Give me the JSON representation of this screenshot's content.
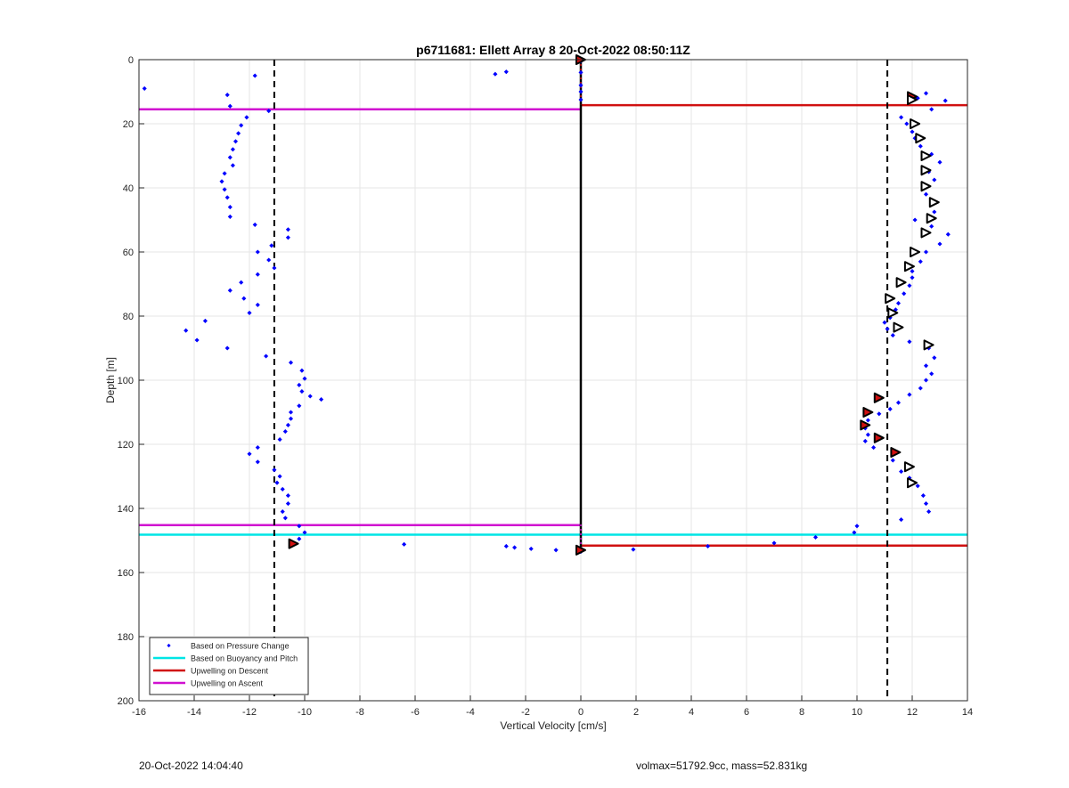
{
  "chart_data": {
    "type": "scatter",
    "title": "p6711681: Ellett Array 8 20-Oct-2022 08:50:11Z",
    "xlabel": "Vertical Velocity [cm/s]",
    "ylabel": "Depth [m]",
    "xlim": [
      -16,
      14
    ],
    "ylim": [
      0,
      200
    ],
    "y_reversed": true,
    "xticks": [
      -16,
      -14,
      -12,
      -10,
      -8,
      -6,
      -4,
      -2,
      0,
      2,
      4,
      6,
      8,
      10,
      12,
      14
    ],
    "yticks": [
      0,
      20,
      40,
      60,
      80,
      100,
      120,
      140,
      160,
      180,
      200
    ],
    "grid": true,
    "legend_location": "bottom-left",
    "legend": [
      {
        "label": "Based on Pressure Change",
        "color": "#0000ff",
        "marker": "dot"
      },
      {
        "label": "Based on Buoyancy and Pitch",
        "color": "#00e5e5",
        "marker": "line"
      },
      {
        "label": "Upwelling on Descent",
        "color": "#d01010",
        "marker": "line"
      },
      {
        "label": "Upwelling on Ascent",
        "color": "#d010d0",
        "marker": "line"
      }
    ],
    "dashed_lines_x": [
      -11.1,
      11.1
    ],
    "zero_line_x": 0,
    "ascent_points": [
      [
        -15.8,
        9
      ],
      [
        -11.8,
        5
      ],
      [
        -12.8,
        11
      ],
      [
        -12.7,
        14.5
      ],
      [
        -11.3,
        16
      ],
      [
        -12.1,
        18
      ],
      [
        -12.3,
        20.5
      ],
      [
        -12.4,
        23
      ],
      [
        -12.5,
        25.5
      ],
      [
        -12.6,
        28
      ],
      [
        -12.7,
        30.5
      ],
      [
        -12.6,
        33
      ],
      [
        -12.9,
        35.5
      ],
      [
        -13.0,
        38
      ],
      [
        -12.9,
        40.5
      ],
      [
        -12.8,
        43
      ],
      [
        -12.7,
        46
      ],
      [
        -12.7,
        49
      ],
      [
        -11.8,
        51.5
      ],
      [
        -10.6,
        53
      ],
      [
        -10.6,
        55.5
      ],
      [
        -11.2,
        58
      ],
      [
        -11.7,
        60
      ],
      [
        -11.3,
        62.5
      ],
      [
        -11.1,
        65
      ],
      [
        -11.7,
        67
      ],
      [
        -12.3,
        69.5
      ],
      [
        -12.7,
        72
      ],
      [
        -12.2,
        74.5
      ],
      [
        -11.7,
        76.5
      ],
      [
        -12.0,
        79
      ],
      [
        -13.6,
        81.5
      ],
      [
        -14.3,
        84.5
      ],
      [
        -13.9,
        87.5
      ],
      [
        -12.8,
        90
      ],
      [
        -11.4,
        92.5
      ],
      [
        -10.5,
        94.5
      ],
      [
        -10.1,
        97
      ],
      [
        -10.0,
        99.5
      ],
      [
        -10.2,
        101.5
      ],
      [
        -10.1,
        103.5
      ],
      [
        -9.8,
        105
      ],
      [
        -9.4,
        106
      ],
      [
        -10.2,
        108
      ],
      [
        -10.5,
        110
      ],
      [
        -10.5,
        112
      ],
      [
        -10.6,
        114
      ],
      [
        -10.7,
        116
      ],
      [
        -10.9,
        118.5
      ],
      [
        -11.7,
        121
      ],
      [
        -12.0,
        123
      ],
      [
        -11.7,
        125.5
      ],
      [
        -11.1,
        128
      ],
      [
        -10.9,
        130
      ],
      [
        -11.0,
        132
      ],
      [
        -10.8,
        134
      ],
      [
        -10.6,
        136
      ],
      [
        -10.6,
        138.5
      ],
      [
        -10.8,
        141
      ],
      [
        -10.7,
        143
      ],
      [
        -10.2,
        145.5
      ],
      [
        -10.0,
        147.5
      ],
      [
        -10.2,
        149.5
      ],
      [
        -6.4,
        151.2
      ],
      [
        -2.7,
        151.8
      ],
      [
        -2.4,
        152.2
      ],
      [
        -1.8,
        152.6
      ],
      [
        -0.9,
        153
      ],
      [
        -3.1,
        4.5
      ],
      [
        -2.7,
        3.8
      ]
    ],
    "descent_points": [
      [
        0,
        0.5
      ],
      [
        0,
        4
      ],
      [
        0,
        8
      ],
      [
        0,
        10
      ],
      [
        0,
        12.5
      ],
      [
        12.5,
        10.5
      ],
      [
        12.2,
        12
      ],
      [
        13.2,
        12.8
      ],
      [
        12.7,
        15.5
      ],
      [
        11.6,
        18
      ],
      [
        11.8,
        20
      ],
      [
        12.0,
        22.5
      ],
      [
        12.1,
        24.5
      ],
      [
        12.3,
        27
      ],
      [
        12.7,
        29.5
      ],
      [
        13.0,
        32
      ],
      [
        12.6,
        35
      ],
      [
        12.8,
        37.5
      ],
      [
        12.5,
        42
      ],
      [
        12.8,
        47.5
      ],
      [
        12.1,
        50
      ],
      [
        12.7,
        52
      ],
      [
        13.3,
        54.5
      ],
      [
        13.0,
        57.5
      ],
      [
        12.5,
        60
      ],
      [
        12.3,
        63
      ],
      [
        12.0,
        66
      ],
      [
        12.0,
        68
      ],
      [
        11.9,
        70.5
      ],
      [
        11.7,
        73
      ],
      [
        11.5,
        76
      ],
      [
        11.4,
        78
      ],
      [
        11.2,
        80.5
      ],
      [
        11.0,
        82
      ],
      [
        11.1,
        84
      ],
      [
        11.3,
        86
      ],
      [
        11.9,
        88
      ],
      [
        12.6,
        90
      ],
      [
        12.8,
        93
      ],
      [
        12.5,
        95.5
      ],
      [
        12.7,
        98
      ],
      [
        12.5,
        100
      ],
      [
        12.3,
        102.5
      ],
      [
        11.9,
        104.5
      ],
      [
        11.5,
        107
      ],
      [
        11.2,
        109
      ],
      [
        10.8,
        110.5
      ],
      [
        10.4,
        112.5
      ],
      [
        10.3,
        115
      ],
      [
        10.4,
        117
      ],
      [
        10.3,
        119
      ],
      [
        10.6,
        121
      ],
      [
        11.3,
        125
      ],
      [
        11.6,
        128.5
      ],
      [
        11.9,
        130.5
      ],
      [
        12.2,
        133
      ],
      [
        12.4,
        136
      ],
      [
        12.5,
        138.5
      ],
      [
        12.6,
        141
      ],
      [
        11.6,
        143.5
      ],
      [
        10.0,
        145.5
      ],
      [
        9.9,
        147.5
      ],
      [
        8.5,
        149
      ],
      [
        7.0,
        150.8
      ],
      [
        4.6,
        151.8
      ],
      [
        1.9,
        152.8
      ],
      [
        0,
        153.5
      ]
    ],
    "triangle_markers": [
      {
        "x": 0,
        "y": 0,
        "fill": "#d01010"
      },
      {
        "x": 12.0,
        "y": 11.5,
        "fill": "#d01010"
      },
      {
        "x": 12.0,
        "y": 12.5,
        "fill": "#ffffff"
      },
      {
        "x": 12.1,
        "y": 20,
        "fill": "#ffffff"
      },
      {
        "x": 12.3,
        "y": 24.5,
        "fill": "#ffffff"
      },
      {
        "x": 12.5,
        "y": 30,
        "fill": "#ffffff"
      },
      {
        "x": 12.5,
        "y": 34.5,
        "fill": "#ffffff"
      },
      {
        "x": 12.5,
        "y": 39.5,
        "fill": "#ffffff"
      },
      {
        "x": 12.8,
        "y": 44.5,
        "fill": "#ffffff"
      },
      {
        "x": 12.7,
        "y": 49.5,
        "fill": "#ffffff"
      },
      {
        "x": 12.5,
        "y": 54,
        "fill": "#ffffff"
      },
      {
        "x": 12.1,
        "y": 60,
        "fill": "#ffffff"
      },
      {
        "x": 11.9,
        "y": 64.5,
        "fill": "#ffffff"
      },
      {
        "x": 11.6,
        "y": 69.5,
        "fill": "#ffffff"
      },
      {
        "x": 11.2,
        "y": 74.5,
        "fill": "#ffffff"
      },
      {
        "x": 11.3,
        "y": 79,
        "fill": "#ffffff"
      },
      {
        "x": 11.5,
        "y": 83.5,
        "fill": "#ffffff"
      },
      {
        "x": 12.6,
        "y": 89,
        "fill": "#ffffff"
      },
      {
        "x": 10.8,
        "y": 105.5,
        "fill": "#d01010"
      },
      {
        "x": 10.4,
        "y": 110,
        "fill": "#d01010"
      },
      {
        "x": 10.3,
        "y": 114,
        "fill": "#d01010"
      },
      {
        "x": 10.8,
        "y": 118,
        "fill": "#d01010"
      },
      {
        "x": 11.4,
        "y": 122.5,
        "fill": "#d01010"
      },
      {
        "x": 11.9,
        "y": 127,
        "fill": "#ffffff"
      },
      {
        "x": 12.0,
        "y": 132,
        "fill": "#ffffff"
      },
      {
        "x": -10.4,
        "y": 151,
        "fill": "#d01010"
      },
      {
        "x": 0,
        "y": 153,
        "fill": "#d01010"
      }
    ],
    "horizontal_lines": [
      {
        "series": "Upwelling on Ascent",
        "y": 15.5,
        "x_from": -16,
        "x_to": 0,
        "color": "#d010d0"
      },
      {
        "series": "Upwelling on Descent",
        "y": 14.2,
        "x_from": 0,
        "x_to": 14,
        "color": "#d01010"
      },
      {
        "series": "Upwelling on Ascent",
        "y": 145.2,
        "x_from": -16,
        "x_to": 0,
        "color": "#d010d0"
      },
      {
        "series": "Based on Buoyancy and Pitch",
        "y": 148.2,
        "x_from": -16,
        "x_to": 14,
        "color": "#00e5e5"
      },
      {
        "series": "Upwelling on Descent",
        "y": 151.6,
        "x_from": 0,
        "x_to": 14,
        "color": "#d01010"
      }
    ]
  },
  "footer": {
    "timestamp": "20-Oct-2022 14:04:40",
    "info": "volmax=51792.9cc, mass=52.831kg"
  }
}
